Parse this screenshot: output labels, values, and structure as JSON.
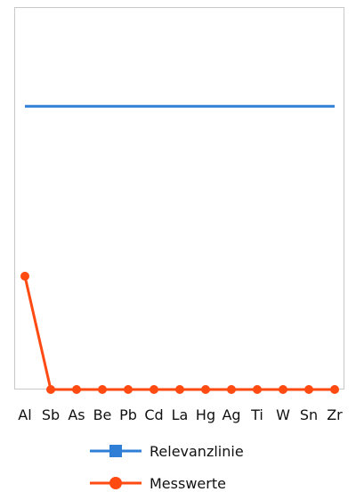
{
  "chart_data": {
    "type": "line",
    "categories": [
      "Al",
      "Sb",
      "As",
      "Be",
      "Pb",
      "Cd",
      "La",
      "Hg",
      "Ag",
      "Ti",
      "W",
      "Sn",
      "Zr"
    ],
    "series": [
      {
        "name": "Relevanzlinie",
        "color": "#2f7fd6",
        "marker": "square",
        "values": [
          1.0,
          1.0,
          1.0,
          1.0,
          1.0,
          1.0,
          1.0,
          1.0,
          1.0,
          1.0,
          1.0,
          1.0,
          1.0
        ]
      },
      {
        "name": "Messwerte",
        "color": "#ff4a12",
        "marker": "circle",
        "values": [
          0.4,
          0,
          0,
          0,
          0,
          0,
          0,
          0,
          0,
          0,
          0,
          0,
          0
        ]
      }
    ],
    "ylim": [
      0,
      1.35
    ],
    "grid": false,
    "legend_position": "bottom"
  }
}
